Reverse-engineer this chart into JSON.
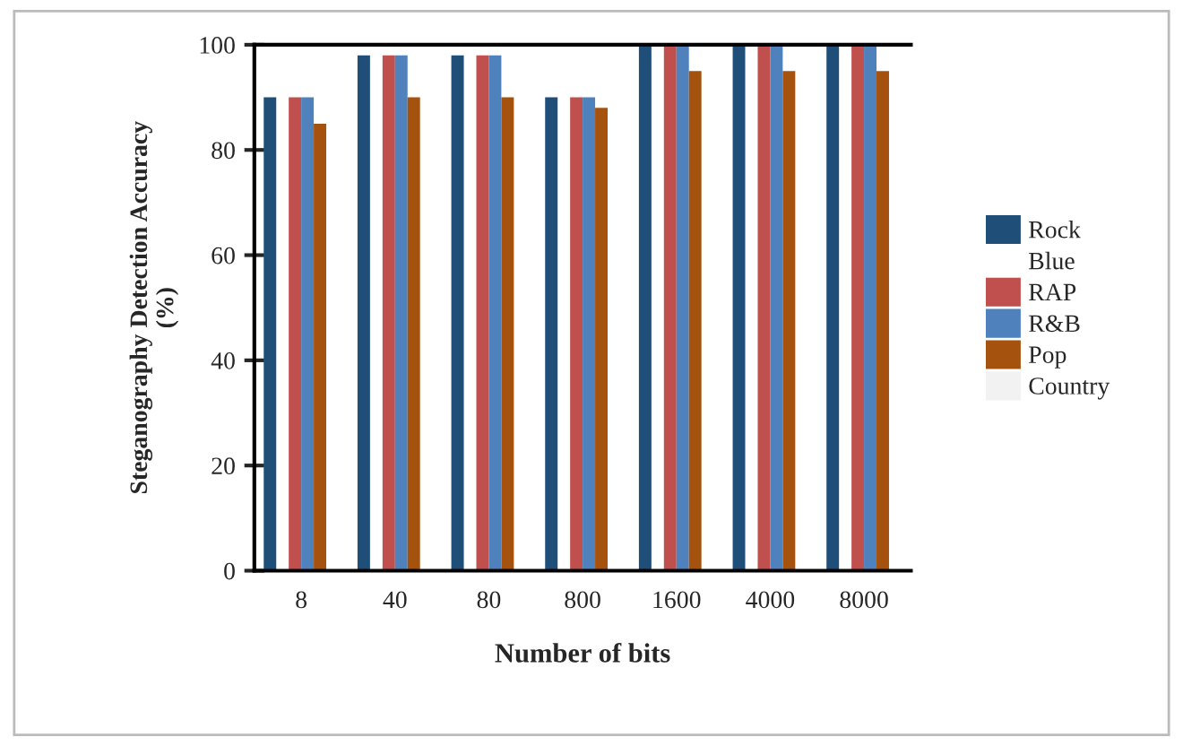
{
  "chart_data": {
    "type": "bar",
    "xlabel": "Number of bits",
    "ylabel": "Steganography Detection Accuracy\n(%)",
    "categories": [
      "8",
      "40",
      "80",
      "800",
      "1600",
      "4000",
      "8000"
    ],
    "series": [
      {
        "name": "Rock",
        "color": "#1f4e79",
        "values": [
          90,
          98,
          98,
          90,
          100,
          100,
          100
        ]
      },
      {
        "name": "Blue",
        "values": [
          null,
          null,
          null,
          null,
          null,
          null,
          null
        ]
      },
      {
        "name": "RAP",
        "color": "#c0504d",
        "values": [
          90,
          98,
          98,
          90,
          100,
          100,
          100
        ]
      },
      {
        "name": "R&B",
        "color": "#4f81bd",
        "values": [
          90,
          98,
          98,
          90,
          100,
          100,
          100
        ]
      },
      {
        "name": "Pop",
        "color": "#a5520f",
        "values": [
          85,
          90,
          90,
          88,
          95,
          95,
          95
        ]
      },
      {
        "name": "Country",
        "color": "#f2f2f2",
        "values": [
          null,
          null,
          null,
          null,
          null,
          null,
          null
        ]
      }
    ],
    "ylim": [
      0,
      100
    ],
    "yticks": [
      0,
      20,
      40,
      60,
      80,
      100
    ],
    "grid": false,
    "legend": "right"
  }
}
